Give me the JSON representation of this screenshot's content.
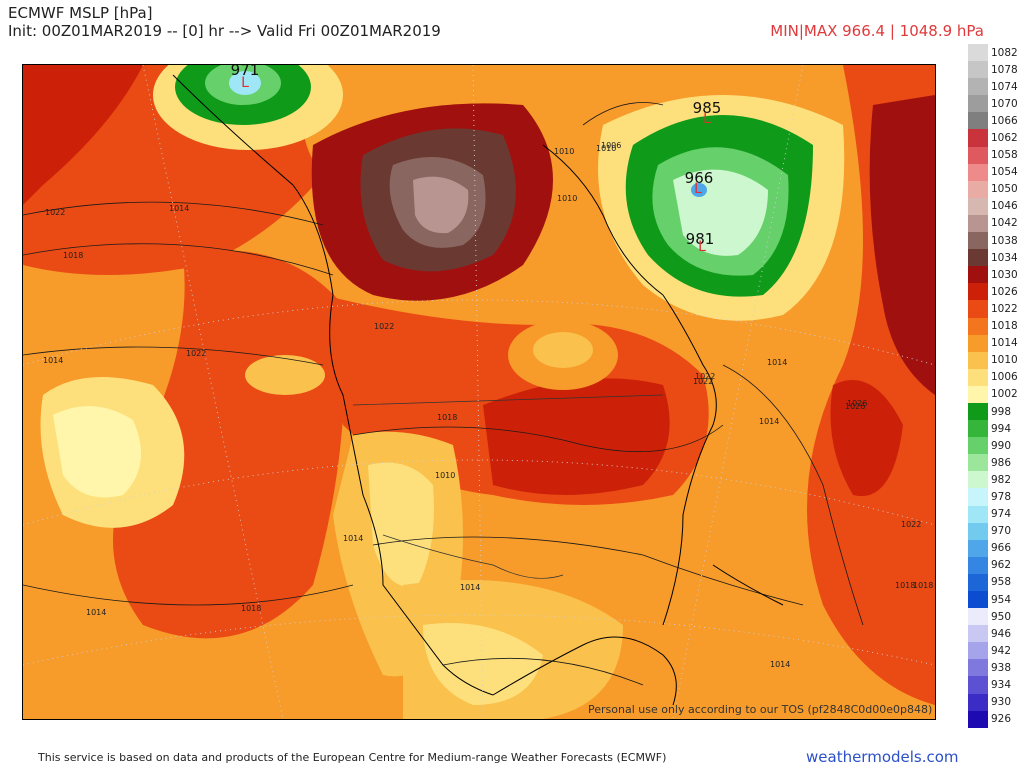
{
  "header": {
    "title": "ECMWF MSLP [hPa]",
    "init": "Init: 00Z01MAR2019 -- [0] hr --> Valid Fri 00Z01MAR2019",
    "minmax": "MIN|MAX 966.4 | 1048.9 hPa"
  },
  "colorbar": [
    {
      "label": "1082",
      "color": "#dadada"
    },
    {
      "label": "1078",
      "color": "#c6c6c6"
    },
    {
      "label": "1074",
      "color": "#b3b3b3"
    },
    {
      "label": "1070",
      "color": "#9d9d9d"
    },
    {
      "label": "1066",
      "color": "#7f7f7f"
    },
    {
      "label": "1062",
      "color": "#c9343c"
    },
    {
      "label": "1058",
      "color": "#de5a5f"
    },
    {
      "label": "1054",
      "color": "#ef8a8a"
    },
    {
      "label": "1050",
      "color": "#e8aca5"
    },
    {
      "label": "1046",
      "color": "#d6b8b0"
    },
    {
      "label": "1042",
      "color": "#b89590"
    },
    {
      "label": "1038",
      "color": "#8a6660"
    },
    {
      "label": "1034",
      "color": "#6a3a32"
    },
    {
      "label": "1030",
      "color": "#a0100f"
    },
    {
      "label": "1026",
      "color": "#cc2108"
    },
    {
      "label": "1022",
      "color": "#ea4a14"
    },
    {
      "label": "1018",
      "color": "#f3761e"
    },
    {
      "label": "1014",
      "color": "#f79b2a"
    },
    {
      "label": "1010",
      "color": "#fac14c"
    },
    {
      "label": "1006",
      "color": "#fde07c"
    },
    {
      "label": "1002",
      "color": "#fff6ab"
    },
    {
      "label": "998",
      "color": "#109a1a"
    },
    {
      "label": "994",
      "color": "#35b53a"
    },
    {
      "label": "990",
      "color": "#66d06a"
    },
    {
      "label": "986",
      "color": "#9ce69c"
    },
    {
      "label": "982",
      "color": "#cdf7cf"
    },
    {
      "label": "978",
      "color": "#c8f4fb"
    },
    {
      "label": "974",
      "color": "#9fe7f6"
    },
    {
      "label": "970",
      "color": "#72caef"
    },
    {
      "label": "966",
      "color": "#4fa6e9"
    },
    {
      "label": "962",
      "color": "#3486e2"
    },
    {
      "label": "958",
      "color": "#1c66d8"
    },
    {
      "label": "954",
      "color": "#0c4cd0"
    },
    {
      "label": "950",
      "color": "#ecebfb"
    },
    {
      "label": "946",
      "color": "#c9c8f3"
    },
    {
      "label": "942",
      "color": "#a5a3ea"
    },
    {
      "label": "938",
      "color": "#7f79de"
    },
    {
      "label": "934",
      "color": "#5b51d2"
    },
    {
      "label": "930",
      "color": "#3a2cc4"
    },
    {
      "label": "926",
      "color": "#1d0ab0"
    }
  ],
  "map": {
    "centers": [
      {
        "pressure": "971",
        "letter": "L"
      },
      {
        "pressure": "985",
        "letter": "L"
      },
      {
        "pressure": "966",
        "letter": "L"
      },
      {
        "pressure": "981",
        "letter": "L"
      }
    ],
    "isobar_labels": [
      "1022",
      "1014",
      "1018",
      "1014",
      "1022",
      "1026",
      "1022",
      "1018",
      "1010",
      "1014",
      "1010",
      "1010",
      "1006",
      "1022",
      "1018",
      "1010",
      "1014",
      "1022",
      "1026",
      "1014",
      "1018",
      "1014",
      "1022",
      "1018",
      "1014",
      "1014"
    ],
    "watermark": "Personal use only according to our TOS (pf2848C0d00e0p848)"
  },
  "footer": {
    "attribution": "This service is based on data and products of the European Centre for Medium-range Weather Forecasts (ECMWF)",
    "brand": "weathermodels.com"
  }
}
